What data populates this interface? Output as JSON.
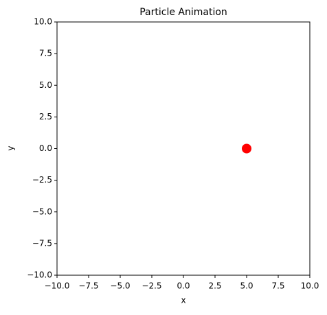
{
  "chart_data": {
    "type": "scatter",
    "title": "Particle Animation",
    "x_label": "x",
    "y_label": "y",
    "series": [
      {
        "color": "#ff0000",
        "x": [
          5
        ],
        "values": [
          0
        ]
      }
    ],
    "xlim": [
      -10,
      10
    ],
    "ylim": [
      -10,
      10
    ],
    "xticks": [
      {
        "value": -10,
        "label": "−10.0"
      },
      {
        "value": -7.5,
        "label": "−7.5"
      },
      {
        "value": -5,
        "label": "−5.0"
      },
      {
        "value": -2.5,
        "label": "−2.5"
      },
      {
        "value": 0,
        "label": "0.0"
      },
      {
        "value": 2.5,
        "label": "2.5"
      },
      {
        "value": 5,
        "label": "5.0"
      },
      {
        "value": 7.5,
        "label": "7.5"
      },
      {
        "value": 10,
        "label": "10.0"
      }
    ],
    "yticks": [
      {
        "value": -10,
        "label": "−10.0"
      },
      {
        "value": -7.5,
        "label": "−7.5"
      },
      {
        "value": -5,
        "label": "−5.0"
      },
      {
        "value": -2.5,
        "label": "−2.5"
      },
      {
        "value": 0,
        "label": "0.0"
      },
      {
        "value": 2.5,
        "label": "2.5"
      },
      {
        "value": 5,
        "label": "5.0"
      },
      {
        "value": 7.5,
        "label": "7.5"
      },
      {
        "value": 10,
        "label": "10.0"
      }
    ],
    "grid": false
  }
}
